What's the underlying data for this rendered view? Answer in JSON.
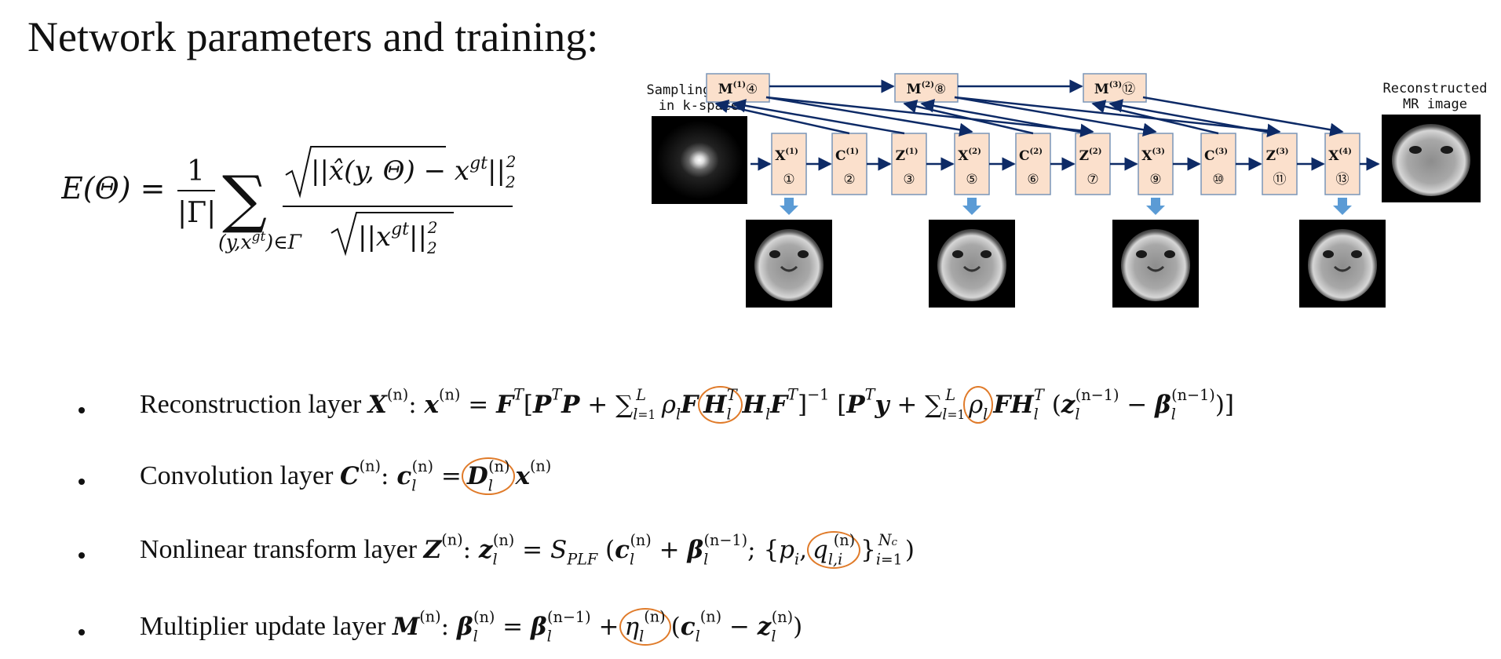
{
  "slide": {
    "title": "Network parameters and training:"
  },
  "energy": {
    "lhs": "E(Θ) =",
    "frac_num": "1",
    "frac_den": "|Γ|",
    "sum_under": "(y,x",
    "sum_under_sup": "gt",
    "sum_under_tail": ")∈Γ",
    "num": "||x̂(y, Θ) − x",
    "num_sup": "gt",
    "num_tail": "||",
    "den": "||x",
    "den_sup": "gt",
    "den_tail": "||",
    "norm_sub": "2",
    "norm_sup": "2"
  },
  "diagram": {
    "input_label_1": "Sampling data",
    "input_label_2": "in k-space",
    "output_label_1": "Reconstructed",
    "output_label_2": "MR image",
    "stages": [
      {
        "letter": "X",
        "sup": "(1)",
        "num": "①"
      },
      {
        "letter": "C",
        "sup": "(1)",
        "num": "②"
      },
      {
        "letter": "Z",
        "sup": "(1)",
        "num": "③"
      },
      {
        "letter": "X",
        "sup": "(2)",
        "num": "⑤"
      },
      {
        "letter": "C",
        "sup": "(2)",
        "num": "⑥"
      },
      {
        "letter": "Z",
        "sup": "(2)",
        "num": "⑦"
      },
      {
        "letter": "X",
        "sup": "(3)",
        "num": "⑨"
      },
      {
        "letter": "C",
        "sup": "(3)",
        "num": "⑩"
      },
      {
        "letter": "Z",
        "sup": "(3)",
        "num": "⑪"
      },
      {
        "letter": "X",
        "sup": "(4)",
        "num": "⑬"
      }
    ],
    "multipliers": [
      {
        "letter": "M",
        "sup": "(1)",
        "num": "④"
      },
      {
        "letter": "M",
        "sup": "(2)",
        "num": "⑧"
      },
      {
        "letter": "M",
        "sup": "(3)",
        "num": "⑫"
      }
    ],
    "colors": {
      "box_fill": "#fbe0cc",
      "box_stroke": "#7a95b8",
      "arrow": "#0d2a66",
      "down_arrow": "#5b9bd5"
    }
  },
  "layers": [
    {
      "name": "Reconstruction layer",
      "symbol": "X",
      "sup": "(n)"
    },
    {
      "name": "Convolution layer",
      "symbol": "C",
      "sup": "(n)"
    },
    {
      "name": "Nonlinear transform layer",
      "symbol": "Z",
      "sup": "(n)"
    },
    {
      "name": "Multiplier update layer",
      "symbol": "M",
      "sup": "(n)"
    }
  ],
  "highlight_color": "#e07b2a"
}
